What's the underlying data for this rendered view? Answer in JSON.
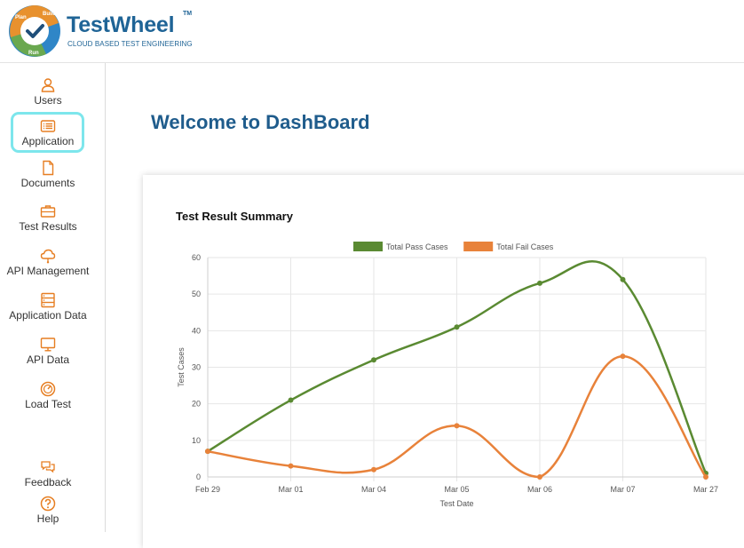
{
  "brand": {
    "name": "TestWheel",
    "trademark": "TM",
    "tagline": "CLOUD BASED TEST ENGINEERING",
    "wheel_words": [
      "Plan",
      "Build",
      "Run"
    ]
  },
  "colors": {
    "brand_blue": "#1f6496",
    "title_blue": "#1f5c8c",
    "icon_orange": "#e67e22",
    "active_outline": "#7de6ec",
    "pass_green": "#5a8a32",
    "fail_orange": "#e8823a"
  },
  "sidebar": {
    "items": [
      {
        "label": "Users",
        "icon": "user-icon"
      },
      {
        "label": "Application",
        "icon": "list-icon",
        "active": true
      },
      {
        "label": "Documents",
        "icon": "document-icon"
      },
      {
        "label": "Test Results",
        "icon": "briefcase-icon"
      },
      {
        "label": "API Management",
        "icon": "cloud-icon"
      },
      {
        "label": "Application Data",
        "icon": "database-icon"
      },
      {
        "label": "API Data",
        "icon": "monitor-icon"
      },
      {
        "label": "Load Test",
        "icon": "gauge-icon"
      },
      {
        "label": "Feedback",
        "icon": "chat-icon"
      },
      {
        "label": "Help",
        "icon": "help-icon"
      }
    ]
  },
  "main": {
    "title": "Welcome to DashBoard",
    "card_title": "Test Result Summary"
  },
  "chart_data": {
    "type": "line",
    "categories": [
      "Feb 29",
      "Mar 01",
      "Mar 04",
      "Mar 05",
      "Mar 06",
      "Mar 07",
      "Mar 27"
    ],
    "series": [
      {
        "name": "Total Pass Cases",
        "values": [
          7,
          21,
          32,
          41,
          53,
          54,
          1
        ],
        "color": "#5a8a32"
      },
      {
        "name": "Total Fail Cases",
        "values": [
          7,
          3,
          2,
          14,
          0,
          33,
          0
        ],
        "color": "#e8823a"
      }
    ],
    "xlabel": "Test Date",
    "ylabel": "Test Cases",
    "ylim": [
      0,
      60
    ],
    "yticks": [
      0,
      10,
      20,
      30,
      40,
      50,
      60
    ],
    "grid": true,
    "legend": "top-center",
    "smooth": true
  }
}
